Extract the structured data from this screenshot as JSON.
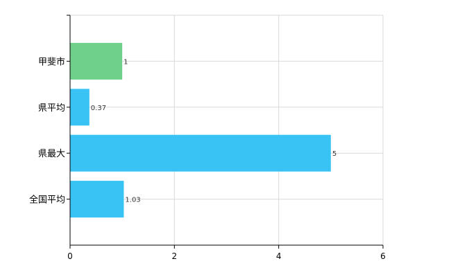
{
  "chart_data": {
    "type": "bar",
    "orientation": "horizontal",
    "categories": [
      "甲斐市",
      "県平均",
      "県最大",
      "全国平均"
    ],
    "values": [
      1,
      0.37,
      5,
      1.03
    ],
    "value_labels": [
      "1",
      "0.37",
      "5",
      "1.03"
    ],
    "bar_colors": [
      "#6fd08c",
      "#38c3f4",
      "#38c3f4",
      "#38c3f4"
    ],
    "xlim": [
      0,
      6
    ],
    "xticks": [
      0,
      2,
      4,
      6
    ],
    "grid": true,
    "title": "",
    "xlabel": "",
    "ylabel": ""
  }
}
